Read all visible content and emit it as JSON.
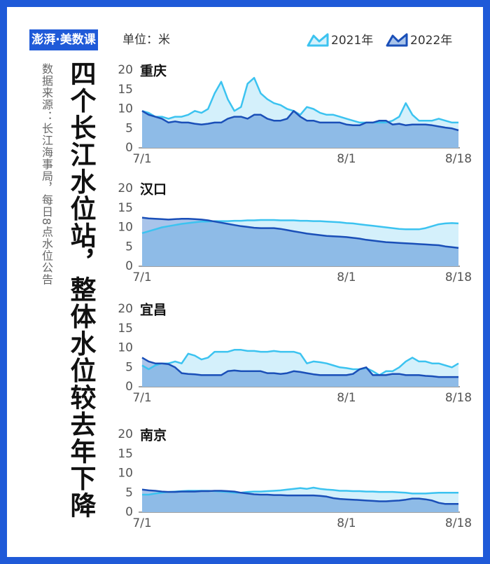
{
  "logo": "澎湃·美数课",
  "source": "数据来源：长江海事局，每日8点水位公告",
  "title": "四个长江水位站，整体水位较去年下降",
  "unit": "单位：米",
  "chart_data": [
    {
      "type": "area",
      "title": "重庆",
      "categories": [
        "7/1",
        null,
        null,
        null,
        null,
        null,
        null,
        null,
        null,
        null,
        null,
        null,
        null,
        null,
        null,
        null,
        null,
        null,
        null,
        null,
        null,
        null,
        null,
        null,
        null,
        null,
        null,
        null,
        null,
        null,
        null,
        "8/1",
        null,
        null,
        null,
        null,
        null,
        null,
        null,
        null,
        null,
        null,
        null,
        null,
        null,
        null,
        null,
        null,
        "8/18"
      ],
      "series": [
        {
          "name": "2021年",
          "color": "#3cc3f0",
          "values": [
            9.5,
            9,
            8,
            8,
            7.5,
            8,
            8,
            8.5,
            9.5,
            9,
            10,
            14,
            17,
            12.5,
            9.5,
            10.5,
            16.5,
            18,
            14,
            12.5,
            11.5,
            11,
            10,
            9.5,
            8.5,
            10.5,
            10,
            9,
            8.5,
            8.5,
            8,
            7.5,
            7,
            6.5,
            6.5,
            6.5,
            6.5,
            6.5,
            7,
            8,
            11.5,
            8.5,
            7,
            7,
            7,
            7.5,
            7,
            6.5,
            6.5
          ]
        },
        {
          "name": "2022年",
          "color": "#1a4fb8",
          "values": [
            9.5,
            8.5,
            8,
            7.5,
            6.5,
            6.8,
            6.5,
            6.5,
            6.2,
            6,
            6.2,
            6.5,
            6.5,
            7.5,
            8,
            8,
            7.5,
            8.5,
            8.5,
            7.5,
            7,
            7,
            7.5,
            9.5,
            8,
            7,
            7,
            6.5,
            6.5,
            6.5,
            6.5,
            6,
            5.8,
            5.8,
            6.5,
            6.5,
            7,
            7,
            6,
            6.2,
            5.8,
            6,
            6,
            6,
            5.8,
            5.5,
            5.2,
            5,
            4.5
          ]
        }
      ],
      "ylim": [
        0,
        20
      ],
      "yticks": [
        0,
        5,
        10,
        15,
        20
      ]
    },
    {
      "type": "area",
      "title": "汉口",
      "categories": [
        "7/1",
        null,
        null,
        null,
        null,
        null,
        null,
        null,
        null,
        null,
        null,
        null,
        null,
        null,
        null,
        null,
        null,
        null,
        null,
        null,
        null,
        null,
        null,
        null,
        null,
        null,
        null,
        null,
        null,
        null,
        null,
        "8/1",
        null,
        null,
        null,
        null,
        null,
        null,
        null,
        null,
        null,
        null,
        null,
        null,
        null,
        null,
        null,
        null,
        "8/18"
      ],
      "series": [
        {
          "name": "2021年",
          "color": "#3cc3f0",
          "values": [
            8.5,
            9,
            9.5,
            10,
            10.3,
            10.6,
            10.9,
            11.1,
            11.3,
            11.5,
            11.5,
            11.6,
            11.6,
            11.6,
            11.7,
            11.7,
            11.8,
            11.8,
            11.9,
            11.9,
            11.9,
            11.8,
            11.8,
            11.8,
            11.7,
            11.7,
            11.6,
            11.6,
            11.5,
            11.4,
            11.3,
            11.1,
            11,
            10.8,
            10.6,
            10.4,
            10.2,
            10,
            9.8,
            9.6,
            9.5,
            9.5,
            9.5,
            9.8,
            10.3,
            10.8,
            11,
            11.1,
            11
          ]
        },
        {
          "name": "2022年",
          "color": "#1a4fb8",
          "values": [
            12.5,
            12.3,
            12.2,
            12.1,
            12,
            12.1,
            12.2,
            12.2,
            12.1,
            12,
            11.8,
            11.5,
            11.2,
            10.9,
            10.6,
            10.3,
            10.1,
            9.9,
            9.8,
            9.8,
            9.8,
            9.6,
            9.3,
            9,
            8.7,
            8.4,
            8.2,
            8,
            7.8,
            7.7,
            7.6,
            7.5,
            7.3,
            7.1,
            6.8,
            6.6,
            6.4,
            6.2,
            6.1,
            6,
            5.9,
            5.8,
            5.7,
            5.6,
            5.5,
            5.4,
            5.1,
            4.9,
            4.7
          ]
        }
      ],
      "ylim": [
        0,
        20
      ],
      "yticks": [
        0,
        5,
        10,
        15,
        20
      ]
    },
    {
      "type": "area",
      "title": "宜昌",
      "categories": [
        "7/1",
        null,
        null,
        null,
        null,
        null,
        null,
        null,
        null,
        null,
        null,
        null,
        null,
        null,
        null,
        null,
        null,
        null,
        null,
        null,
        null,
        null,
        null,
        null,
        null,
        null,
        null,
        null,
        null,
        null,
        null,
        "8/1",
        null,
        null,
        null,
        null,
        null,
        null,
        null,
        null,
        null,
        null,
        null,
        null,
        null,
        null,
        null,
        null,
        "8/18"
      ],
      "series": [
        {
          "name": "2021年",
          "color": "#3cc3f0",
          "values": [
            5.5,
            4.5,
            5.5,
            6,
            6,
            6.5,
            6,
            8.5,
            8,
            7,
            7.5,
            9,
            9,
            9,
            9.5,
            9.5,
            9.2,
            9.2,
            9,
            9,
            9.2,
            9,
            9,
            9,
            8.5,
            6,
            6.5,
            6.3,
            6,
            5.5,
            5,
            4.8,
            4.5,
            4.5,
            4.8,
            4,
            3,
            4,
            4,
            5,
            6.5,
            7.5,
            6.5,
            6.5,
            6,
            6,
            5.5,
            5,
            6
          ]
        },
        {
          "name": "2022年",
          "color": "#1a4fb8",
          "values": [
            7.5,
            6.5,
            6,
            6,
            5.8,
            5,
            3.5,
            3.3,
            3.2,
            3,
            3,
            3,
            3,
            4,
            4.2,
            4,
            4,
            4,
            4,
            3.5,
            3.5,
            3.3,
            3.5,
            4,
            3.8,
            3.5,
            3.2,
            3,
            3,
            3,
            3,
            3,
            3.3,
            4.5,
            5,
            3,
            3,
            3,
            3.3,
            3.3,
            3,
            3,
            3,
            2.8,
            2.7,
            2.5,
            2.5,
            2.5,
            2.5
          ]
        }
      ],
      "ylim": [
        0,
        20
      ],
      "yticks": [
        0,
        5,
        10,
        15,
        20
      ]
    },
    {
      "type": "area",
      "title": "南京",
      "categories": [
        "7/1",
        null,
        null,
        null,
        null,
        null,
        null,
        null,
        null,
        null,
        null,
        null,
        null,
        null,
        null,
        null,
        null,
        null,
        null,
        null,
        null,
        null,
        null,
        null,
        null,
        null,
        null,
        null,
        null,
        null,
        null,
        "8/1",
        null,
        null,
        null,
        null,
        null,
        null,
        null,
        null,
        null,
        null,
        null,
        null,
        null,
        null,
        null,
        null,
        "8/18"
      ],
      "series": [
        {
          "name": "2021年",
          "color": "#3cc3f0",
          "values": [
            4.5,
            4.5,
            4.8,
            5,
            5.2,
            5.3,
            5.4,
            5.5,
            5.5,
            5.5,
            5.5,
            5.4,
            5.3,
            5.2,
            5,
            5,
            5.2,
            5.3,
            5.3,
            5.4,
            5.5,
            5.6,
            5.8,
            6,
            6.2,
            6,
            6.3,
            6,
            5.8,
            5.7,
            5.5,
            5.5,
            5.4,
            5.4,
            5.3,
            5.3,
            5.2,
            5.2,
            5.2,
            5.1,
            5,
            4.8,
            4.8,
            4.8,
            4.9,
            5,
            5,
            5,
            5
          ]
        },
        {
          "name": "2022年",
          "color": "#1a4fb8",
          "values": [
            5.8,
            5.6,
            5.5,
            5.3,
            5.2,
            5.2,
            5.3,
            5.3,
            5.3,
            5.4,
            5.4,
            5.5,
            5.5,
            5.4,
            5.3,
            5,
            4.8,
            4.6,
            4.5,
            4.5,
            4.4,
            4.4,
            4.3,
            4.3,
            4.3,
            4.3,
            4.3,
            4.2,
            4,
            3.6,
            3.4,
            3.3,
            3.2,
            3.1,
            3,
            2.9,
            2.8,
            2.8,
            2.9,
            3,
            3.2,
            3.5,
            3.5,
            3.3,
            3,
            2.4,
            2.1,
            2.1,
            2.1
          ]
        }
      ],
      "ylim": [
        0,
        20
      ],
      "yticks": [
        0,
        5,
        10,
        15,
        20
      ]
    }
  ]
}
